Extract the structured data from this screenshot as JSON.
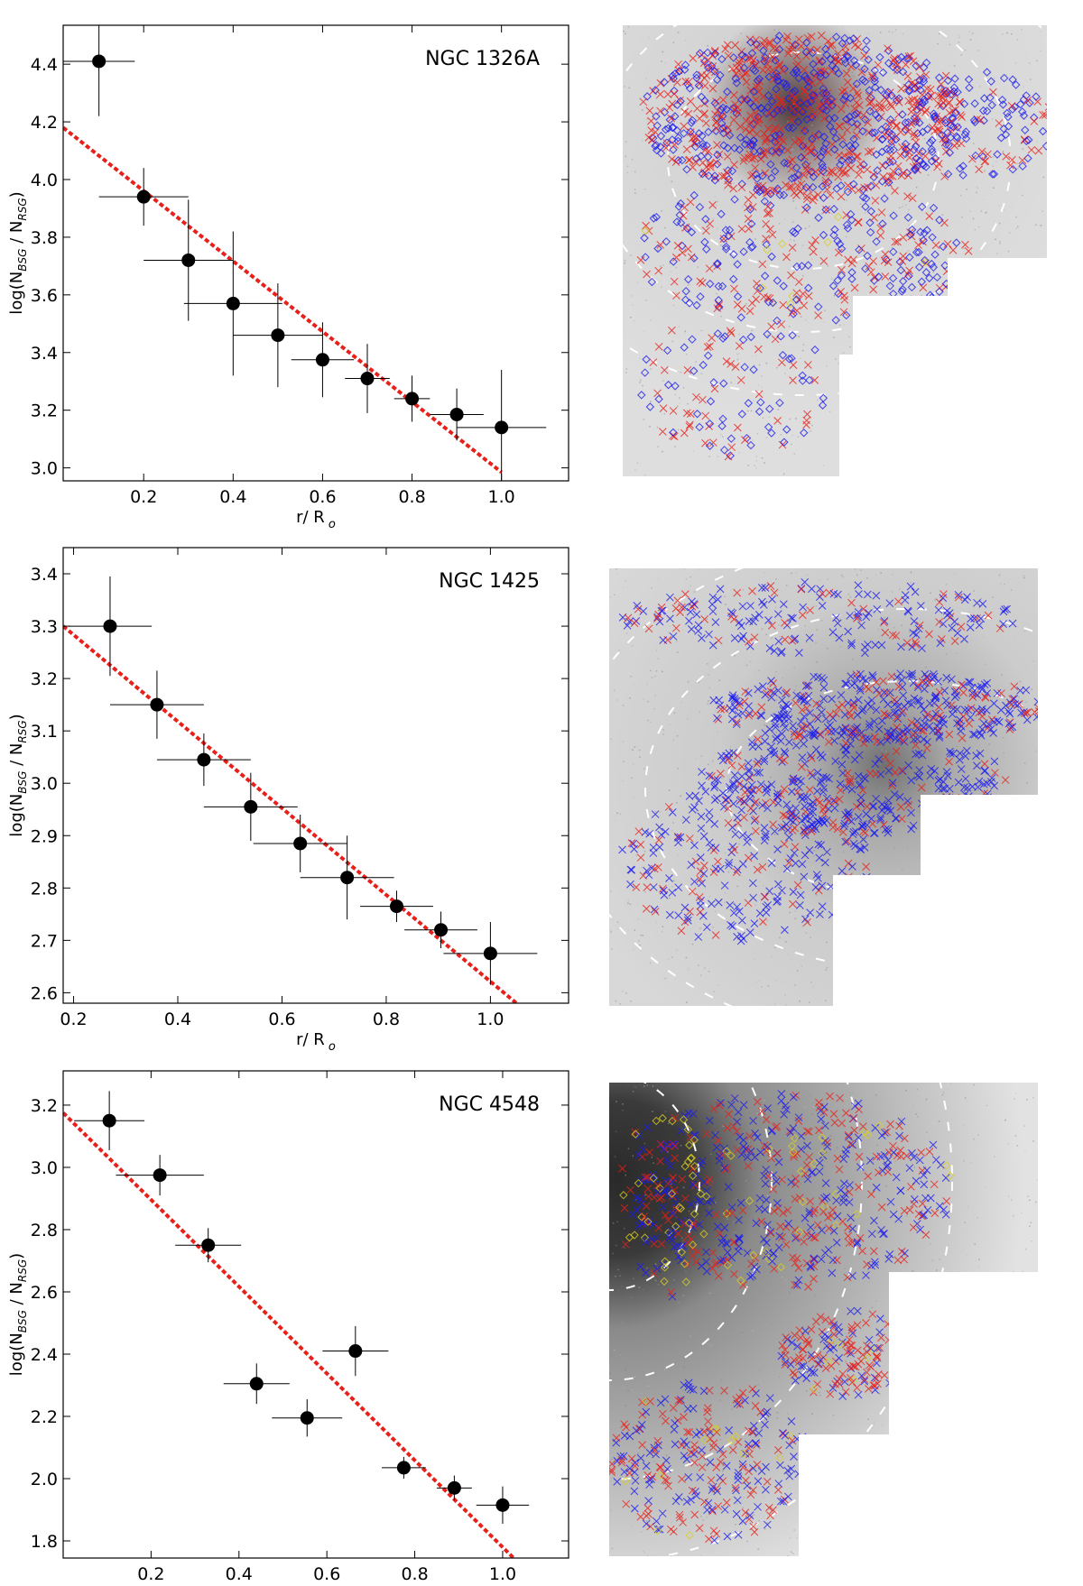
{
  "colors": {
    "points": "#000000",
    "fit_line": "#e8201a",
    "bsg_marker": "#1a1af0",
    "rsg_marker": "#e8201a",
    "ysg_marker": "#d8d020",
    "contour": "#ffffff"
  },
  "chart_data": [
    {
      "type": "scatter",
      "title": "NGC 1326A",
      "xlabel": "r/ R o",
      "ylabel": "log(NBSG / NRSG)",
      "xlim": [
        0.02,
        1.15
      ],
      "ylim": [
        2.955,
        4.535
      ],
      "xticks": [
        0.2,
        0.4,
        0.6,
        0.8,
        1.0
      ],
      "xtick_labels": [
        "0.2",
        "0.4",
        "0.6",
        "0.8",
        "1.0"
      ],
      "yticks": [
        3.0,
        3.2,
        3.4,
        3.6,
        3.8,
        4.0,
        4.2,
        4.4
      ],
      "ytick_labels": [
        "3.0",
        "3.2",
        "3.4",
        "3.6",
        "3.8",
        "4.0",
        "4.2",
        "4.4"
      ],
      "points": [
        {
          "x": 0.1,
          "y": 4.41,
          "xerr": 0.08,
          "yerr": 0.19
        },
        {
          "x": 0.2,
          "y": 3.94,
          "xerr": 0.1,
          "yerr": 0.1
        },
        {
          "x": 0.3,
          "y": 3.72,
          "xerr": 0.1,
          "yerr": 0.21
        },
        {
          "x": 0.4,
          "y": 3.57,
          "xerr": 0.11,
          "yerr": 0.25
        },
        {
          "x": 0.5,
          "y": 3.46,
          "xerr": 0.1,
          "yerr": 0.18
        },
        {
          "x": 0.6,
          "y": 3.375,
          "xerr": 0.07,
          "yerr": 0.13
        },
        {
          "x": 0.7,
          "y": 3.31,
          "xerr": 0.05,
          "yerr": 0.12
        },
        {
          "x": 0.8,
          "y": 3.24,
          "xerr": 0.04,
          "yerr": 0.08
        },
        {
          "x": 0.9,
          "y": 3.185,
          "xerr": 0.06,
          "yerr": 0.09
        },
        {
          "x": 1.0,
          "y": 3.14,
          "xerr": 0.1,
          "yerr": 0.2
        }
      ],
      "fit_line": {
        "x": [
          0.02,
          1.0
        ],
        "y": [
          4.18,
          2.985
        ]
      }
    },
    {
      "type": "scatter",
      "title": "NGC 1425",
      "xlabel": "r/ R o",
      "ylabel": "log(NBSG / NRSG)",
      "xlim": [
        0.18,
        1.15
      ],
      "ylim": [
        2.58,
        3.45
      ],
      "xticks": [
        0.2,
        0.4,
        0.6,
        0.8,
        1.0
      ],
      "xtick_labels": [
        "0.2",
        "0.4",
        "0.6",
        "0.8",
        "1.0"
      ],
      "yticks": [
        2.6,
        2.7,
        2.8,
        2.9,
        3.0,
        3.1,
        3.2,
        3.3,
        3.4
      ],
      "ytick_labels": [
        "2.6",
        "2.7",
        "2.8",
        "2.9",
        "3.0",
        "3.1",
        "3.2",
        "3.3",
        "3.4"
      ],
      "points": [
        {
          "x": 0.27,
          "y": 3.3,
          "xerr": 0.08,
          "yerr": 0.095
        },
        {
          "x": 0.36,
          "y": 3.15,
          "xerr": 0.09,
          "yerr": 0.065
        },
        {
          "x": 0.45,
          "y": 3.045,
          "xerr": 0.09,
          "yerr": 0.05
        },
        {
          "x": 0.54,
          "y": 2.955,
          "xerr": 0.09,
          "yerr": 0.065
        },
        {
          "x": 0.635,
          "y": 2.885,
          "xerr": 0.09,
          "yerr": 0.055
        },
        {
          "x": 0.725,
          "y": 2.82,
          "xerr": 0.09,
          "yerr": 0.08
        },
        {
          "x": 0.82,
          "y": 2.765,
          "xerr": 0.07,
          "yerr": 0.03
        },
        {
          "x": 0.905,
          "y": 2.72,
          "xerr": 0.07,
          "yerr": 0.035
        },
        {
          "x": 1.0,
          "y": 2.675,
          "xerr": 0.09,
          "yerr": 0.06
        }
      ],
      "fit_line": {
        "x": [
          0.18,
          1.05
        ],
        "y": [
          3.3,
          2.58
        ]
      }
    },
    {
      "type": "scatter",
      "title": "NGC 4548",
      "xlabel": "r/ R o",
      "ylabel": "log(NBSG / NRSG)",
      "xlim": [
        0.0,
        1.15
      ],
      "ylim": [
        1.745,
        3.31
      ],
      "xticks": [
        0.2,
        0.4,
        0.6,
        0.8,
        1.0
      ],
      "xtick_labels": [
        "0.2",
        "0.4",
        "0.6",
        "0.8",
        "1.0"
      ],
      "yticks": [
        1.8,
        2.0,
        2.2,
        2.4,
        2.6,
        2.8,
        3.0,
        3.2
      ],
      "ytick_labels": [
        "1.8",
        "2.0",
        "2.2",
        "2.4",
        "2.6",
        "2.8",
        "3.0",
        "3.2"
      ],
      "points": [
        {
          "x": 0.105,
          "y": 3.15,
          "xerr": 0.08,
          "yerr": 0.095
        },
        {
          "x": 0.22,
          "y": 2.975,
          "xerr": 0.1,
          "yerr": 0.065
        },
        {
          "x": 0.33,
          "y": 2.75,
          "xerr": 0.075,
          "yerr": 0.055
        },
        {
          "x": 0.44,
          "y": 2.305,
          "xerr": 0.075,
          "yerr": 0.065
        },
        {
          "x": 0.555,
          "y": 2.195,
          "xerr": 0.08,
          "yerr": 0.06
        },
        {
          "x": 0.665,
          "y": 2.41,
          "xerr": 0.075,
          "yerr": 0.08
        },
        {
          "x": 0.775,
          "y": 2.035,
          "xerr": 0.05,
          "yerr": 0.035
        },
        {
          "x": 0.89,
          "y": 1.97,
          "xerr": 0.04,
          "yerr": 0.04
        },
        {
          "x": 1.0,
          "y": 1.915,
          "xerr": 0.06,
          "yerr": 0.06
        }
      ],
      "fit_line": {
        "x": [
          0.0,
          1.025
        ],
        "y": [
          3.175,
          1.745
        ]
      }
    }
  ]
}
